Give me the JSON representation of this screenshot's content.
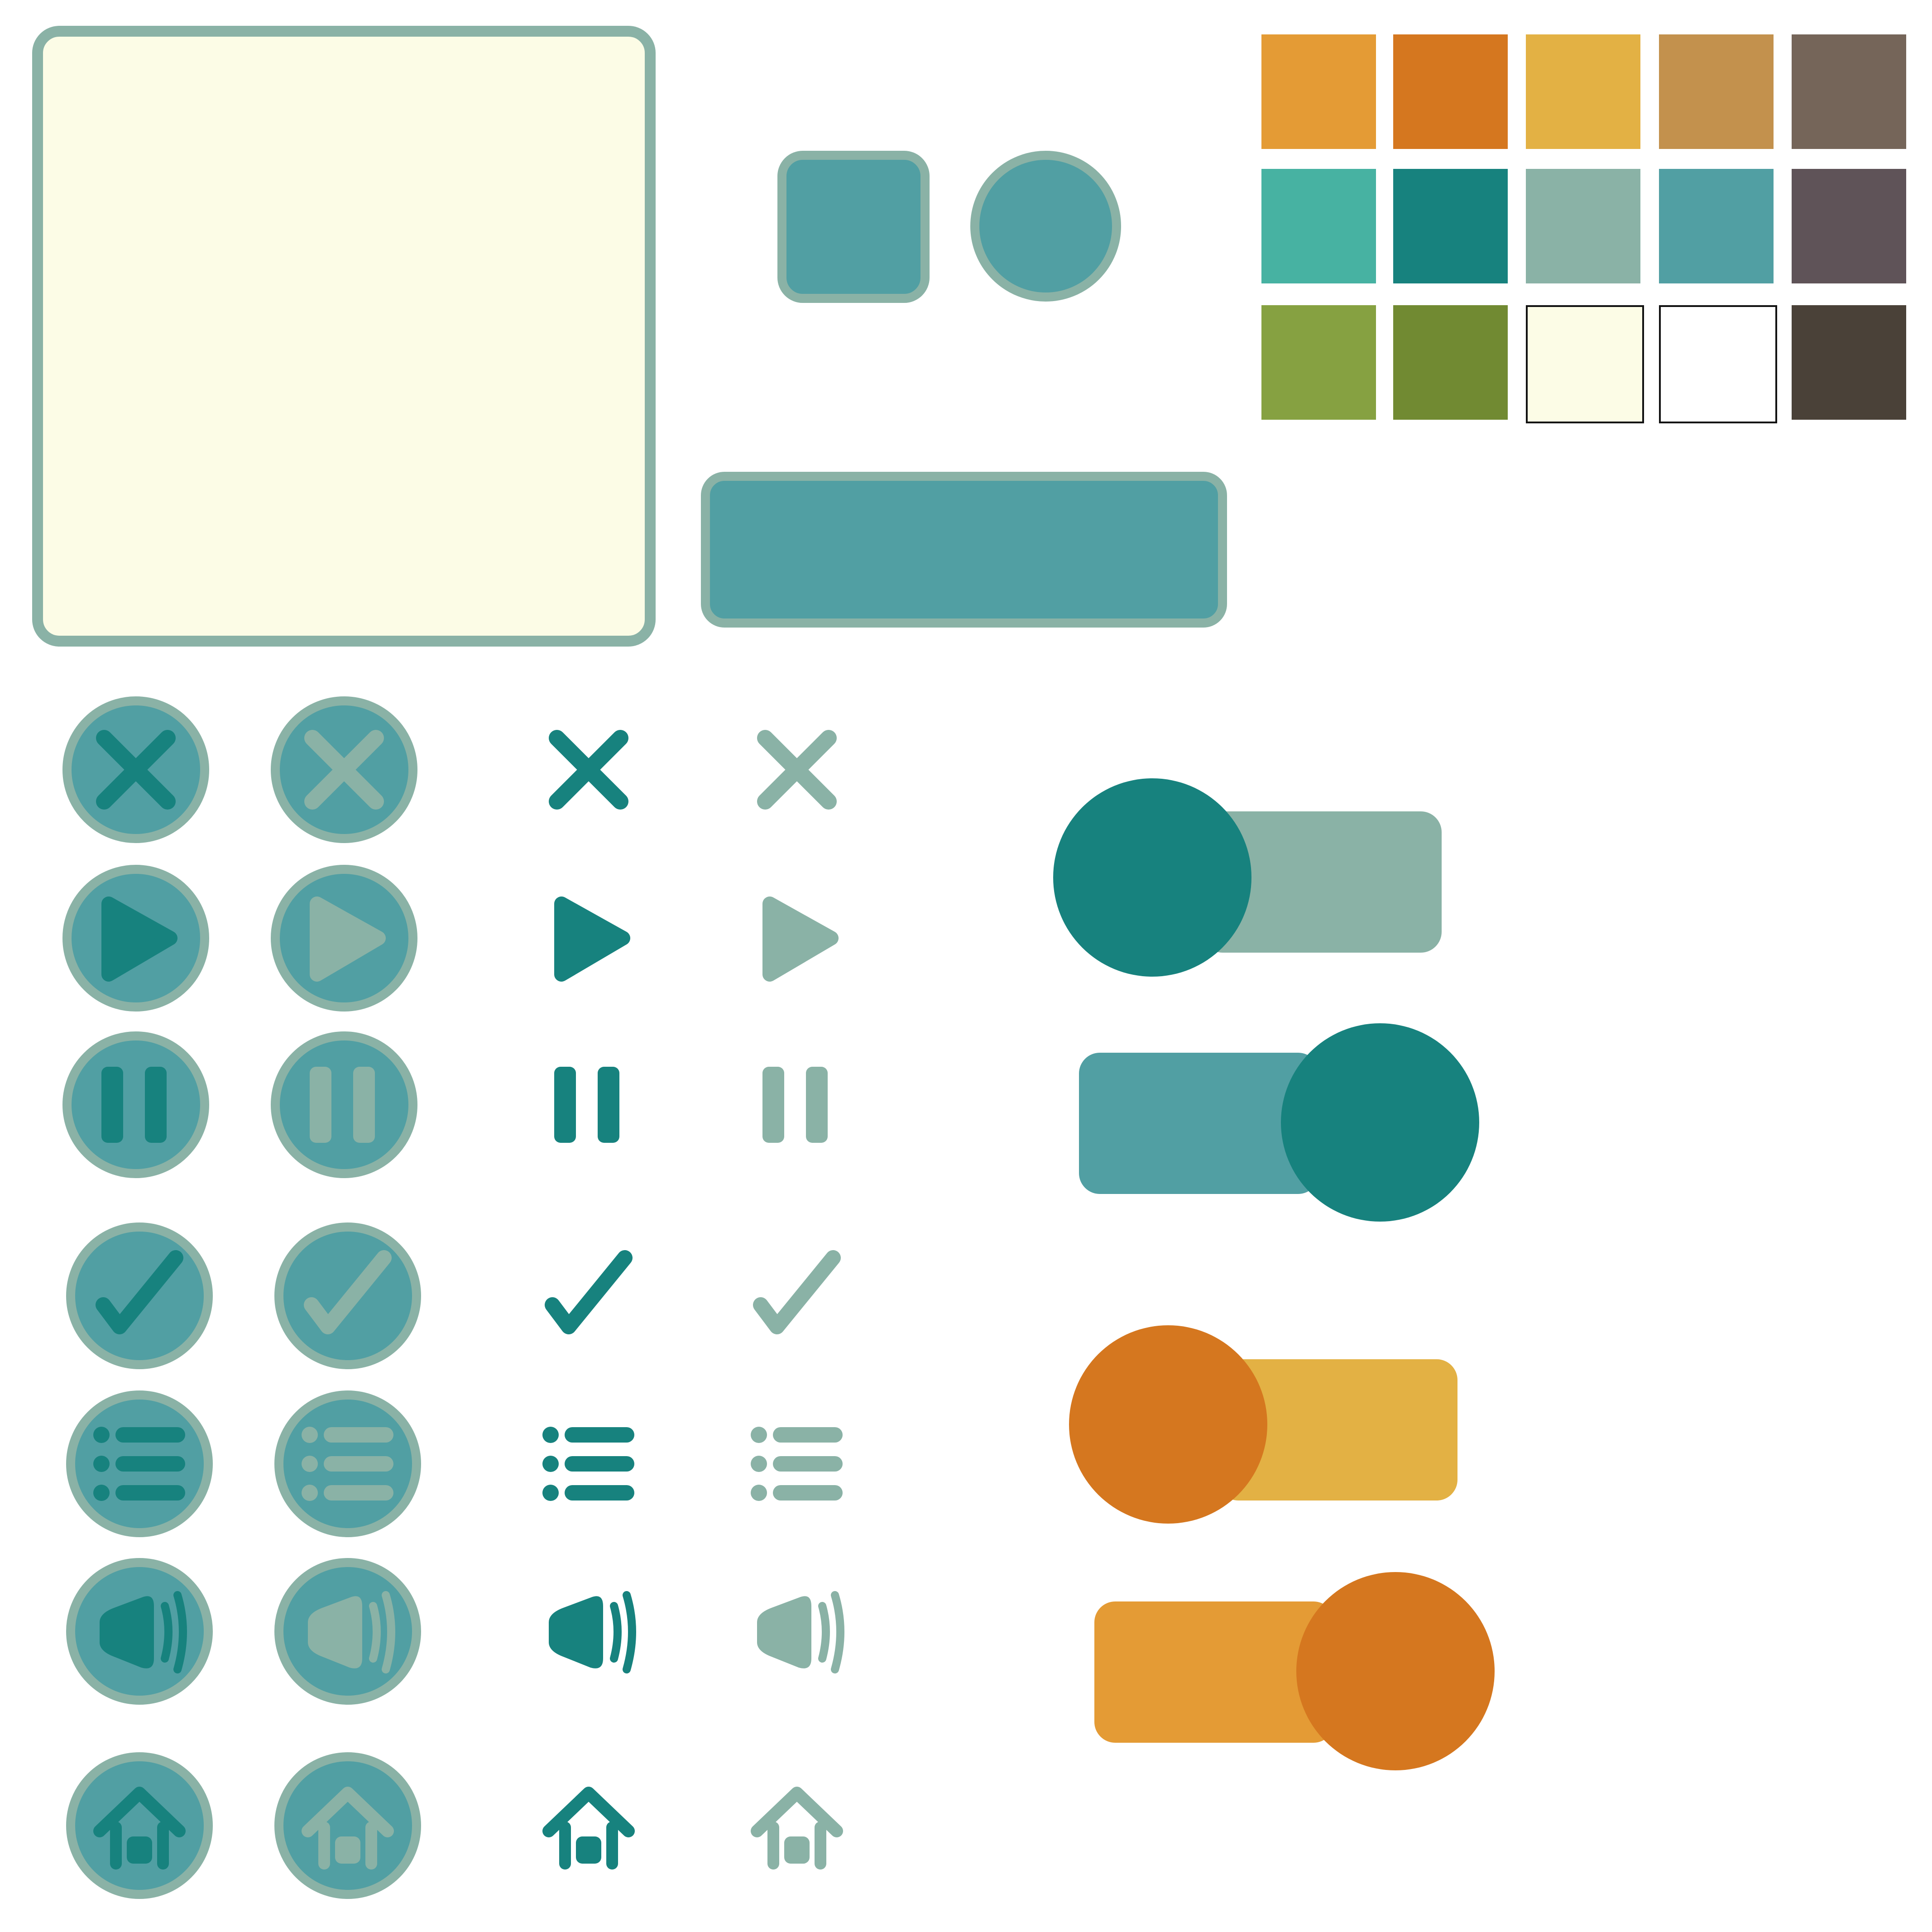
{
  "colors": {
    "panel_fill": "#FCFCE6",
    "border": "#8AB2A6",
    "teal_mid": "#519FA3",
    "teal_dark": "#17827E",
    "gray_green": "#8AB2A6",
    "orange_dark": "#D5771F",
    "orange_light": "#E49B35",
    "yellow": "#E3B144"
  },
  "palette": [
    [
      "#E49B35",
      "#D5771F",
      "#E3B144",
      "#C3914D",
      "#756559"
    ],
    [
      "#47B2A2",
      "#17827E",
      "#8AB2A6",
      "#519FA3",
      "#5F5358"
    ],
    [
      "#86A141",
      "#718A32",
      "#FCFCE6",
      "#FFFFFF",
      "#4A4138"
    ]
  ],
  "icons": [
    "close-icon",
    "play-icon",
    "pause-icon",
    "check-icon",
    "list-icon",
    "volume-icon",
    "home-icon"
  ],
  "icon_variants": [
    "dark",
    "light"
  ],
  "toggles": [
    {
      "name": "toggle-teal-off",
      "state": "off",
      "track": "#8AB2A6",
      "knob": "#17827E"
    },
    {
      "name": "toggle-teal-on",
      "state": "on",
      "track": "#519FA3",
      "knob": "#17827E"
    },
    {
      "name": "toggle-orange-off",
      "state": "off",
      "track": "#E3B144",
      "knob": "#D5771F"
    },
    {
      "name": "toggle-orange-on",
      "state": "on",
      "track": "#E49B35",
      "knob": "#D5771F"
    }
  ]
}
